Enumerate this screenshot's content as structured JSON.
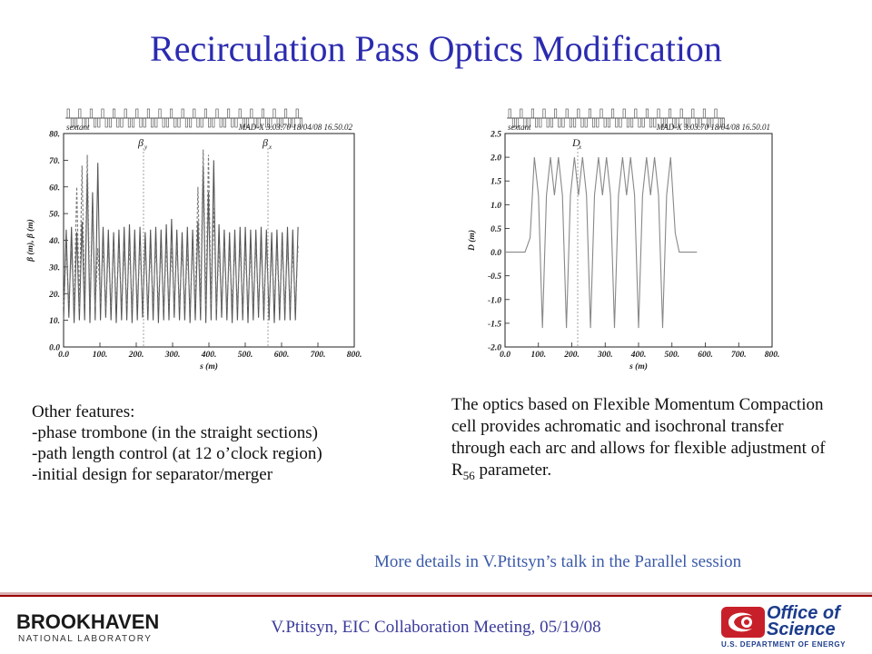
{
  "slide": {
    "title": "Recirculation Pass Optics Modification",
    "left_text": [
      "Other features:",
      "-phase trombone (in the straight sections)",
      "-path length control (at 12 o’clock region)",
      "-initial design for separator/merger"
    ],
    "right_text": "The optics based on Flexible Momentum Compaction cell provides achromatic and isochronal transfer through each arc and allows for flexible adjustment of R",
    "right_text_sub": "56",
    "right_text_end": " parameter.",
    "details": "More details in V.Ptitsyn’s talk in the Parallel session",
    "footer": "V.Ptitsyn, EIC Collaboration Meeting, 05/19/08",
    "bnl_logo": {
      "main": "BROOKHAVEN",
      "sub": "NATIONAL LABORATORY"
    },
    "doe_logo": {
      "line1": "Office of",
      "line2": "Science",
      "sub": "U.S. DEPARTMENT OF ENERGY",
      "color": "#1c3c8c",
      "accent": "#c8202a"
    }
  },
  "chart_data": [
    {
      "type": "line",
      "name_text": "sextant",
      "program": "MAD-X 3.03.70  18/04/08 16.50.02",
      "xlabel": "s (m)",
      "ylabel": "β (m), β (m)",
      "ylabel_x_sub": "x",
      "ylabel_y_sub": "y",
      "xlim": [
        0,
        800
      ],
      "ylim": [
        0,
        80
      ],
      "x_ticks": [
        "0.0",
        "100.",
        "200.",
        "300.",
        "400.",
        "500.",
        "600.",
        "700.",
        "800."
      ],
      "y_ticks": [
        "0.0",
        "10.",
        "20.",
        "30.",
        "40.",
        "50.",
        "60.",
        "70.",
        "80."
      ],
      "legend": [
        {
          "label": "β",
          "sub": "y",
          "x": 88
        },
        {
          "label": "β",
          "sub": "x",
          "x": 225
        }
      ],
      "data_end_s": 650,
      "series": [
        {
          "name": "βx",
          "style": "solid",
          "color": "#555555",
          "period": 14.5,
          "peaks": [
            44,
            45,
            43,
            47,
            65,
            58,
            69,
            45,
            44,
            43,
            44,
            45,
            46,
            44,
            45,
            43,
            44,
            45,
            44,
            46,
            48,
            44,
            43,
            45,
            44,
            47,
            68,
            58,
            70,
            46,
            44,
            43,
            44,
            45,
            45,
            44,
            44,
            45,
            44,
            43,
            44,
            43,
            45,
            44,
            45
          ],
          "troughs": [
            10,
            11,
            9,
            10,
            10,
            9,
            10,
            10,
            11,
            10,
            9,
            10,
            10,
            9,
            10,
            11,
            10,
            10,
            9,
            10,
            10,
            11,
            10,
            10,
            9,
            10,
            10,
            9,
            10,
            10,
            11,
            10,
            9,
            10,
            10,
            9,
            10,
            11,
            10,
            10,
            9,
            10,
            10,
            10
          ]
        },
        {
          "name": "βy",
          "style": "dashed",
          "color": "#777777",
          "period": 14.5,
          "peaks": [
            37,
            36,
            60,
            68,
            72,
            50,
            37,
            38,
            37,
            38,
            37,
            36,
            38,
            37,
            38,
            37,
            36,
            38,
            37,
            38,
            37,
            38,
            37,
            36,
            38,
            60,
            74,
            72,
            52,
            37,
            38,
            36,
            37,
            38,
            37,
            36,
            38,
            37,
            38,
            36,
            37,
            38,
            37,
            36,
            38
          ],
          "troughs": [
            15,
            16,
            15,
            14,
            16,
            15,
            15,
            16,
            14,
            15,
            16,
            15,
            15,
            14,
            16,
            15,
            15,
            16,
            15,
            14,
            15,
            16,
            15,
            15,
            14,
            16,
            15,
            15,
            16,
            14,
            15,
            15,
            16,
            15,
            14,
            15,
            16,
            15,
            15,
            14,
            16,
            15,
            15,
            15
          ]
        }
      ]
    },
    {
      "type": "line",
      "name_text": "sextant",
      "program": "MAD-X 3.03.70  18/04/08 16.50.01",
      "xlabel": "s (m)",
      "ylabel": "D (m)",
      "xlim": [
        0,
        800
      ],
      "ylim": [
        -2.0,
        2.5
      ],
      "x_ticks": [
        "0.0",
        "100.",
        "200.",
        "300.",
        "400.",
        "500.",
        "600.",
        "700.",
        "800."
      ],
      "y_ticks": [
        "-2.0",
        "-1.5",
        "-1.0",
        "-0.5",
        "0.0",
        "0.5",
        "1.0",
        "1.5",
        "2.0",
        "2.5"
      ],
      "legend": [
        {
          "label": "D",
          "sub": "x",
          "x": 80
        }
      ],
      "series": [
        {
          "name": "Dx",
          "style": "solid",
          "color": "#888888",
          "points": [
            [
              0,
              0
            ],
            [
              60,
              0
            ],
            [
              75,
              0.3
            ],
            [
              88,
              2.0
            ],
            [
              100,
              1.2
            ],
            [
              112,
              -1.6
            ],
            [
              124,
              1.2
            ],
            [
              136,
              2.0
            ],
            [
              148,
              1.2
            ],
            [
              160,
              2.0
            ],
            [
              172,
              1.2
            ],
            [
              184,
              -1.6
            ],
            [
              196,
              1.2
            ],
            [
              208,
              2.0
            ],
            [
              220,
              1.2
            ],
            [
              232,
              2.0
            ],
            [
              244,
              1.2
            ],
            [
              256,
              -1.6
            ],
            [
              268,
              1.2
            ],
            [
              280,
              2.0
            ],
            [
              292,
              1.2
            ],
            [
              304,
              2.0
            ],
            [
              316,
              1.2
            ],
            [
              328,
              -1.6
            ],
            [
              340,
              1.2
            ],
            [
              352,
              2.0
            ],
            [
              364,
              1.2
            ],
            [
              376,
              2.0
            ],
            [
              388,
              1.2
            ],
            [
              400,
              -1.6
            ],
            [
              412,
              1.2
            ],
            [
              424,
              2.0
            ],
            [
              436,
              1.2
            ],
            [
              448,
              2.0
            ],
            [
              460,
              1.2
            ],
            [
              472,
              -1.6
            ],
            [
              484,
              1.2
            ],
            [
              496,
              2.0
            ],
            [
              510,
              0.4
            ],
            [
              522,
              0
            ],
            [
              575,
              0
            ]
          ]
        }
      ]
    }
  ]
}
